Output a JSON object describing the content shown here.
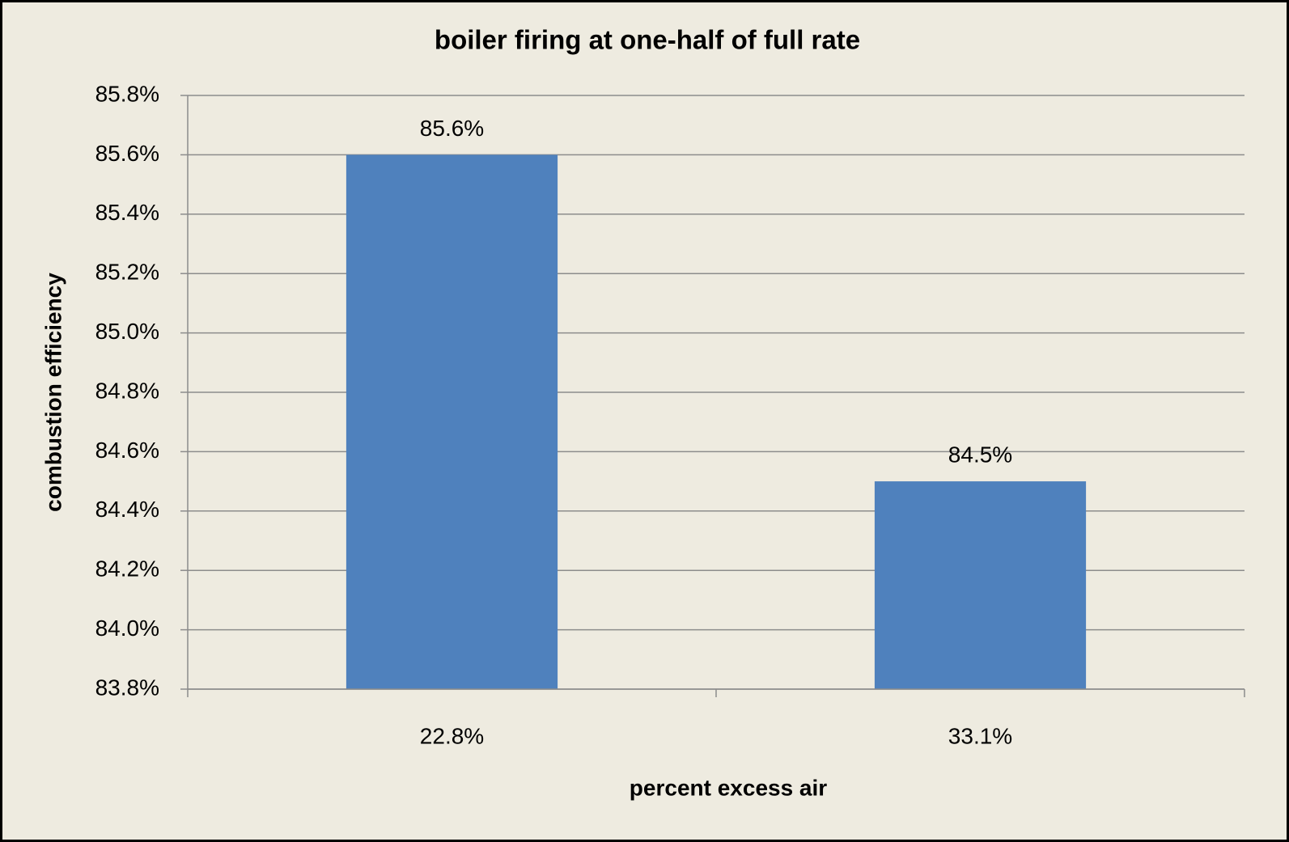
{
  "chart_data": {
    "type": "bar",
    "title": "boiler firing at one-half of full rate",
    "xlabel": "percent excess air",
    "ylabel": "combustion efficiency",
    "categories": [
      "22.8%",
      "33.1%"
    ],
    "values": [
      85.6,
      84.5
    ],
    "value_labels": [
      "85.6%",
      "84.5%"
    ],
    "color": "#4f81bd",
    "ylim": [
      83.8,
      85.8
    ],
    "yticks": [
      {
        "value": 83.8,
        "label": "83.8%"
      },
      {
        "value": 84.0,
        "label": "84.0%"
      },
      {
        "value": 84.2,
        "label": "84.2%"
      },
      {
        "value": 84.4,
        "label": "84.4%"
      },
      {
        "value": 84.6,
        "label": "84.6%"
      },
      {
        "value": 84.8,
        "label": "84.8%"
      },
      {
        "value": 85.0,
        "label": "85.0%"
      },
      {
        "value": 85.2,
        "label": "85.2%"
      },
      {
        "value": 85.4,
        "label": "85.4%"
      },
      {
        "value": 85.6,
        "label": "85.6%"
      },
      {
        "value": 85.8,
        "label": "85.8%"
      }
    ],
    "grid": true
  }
}
